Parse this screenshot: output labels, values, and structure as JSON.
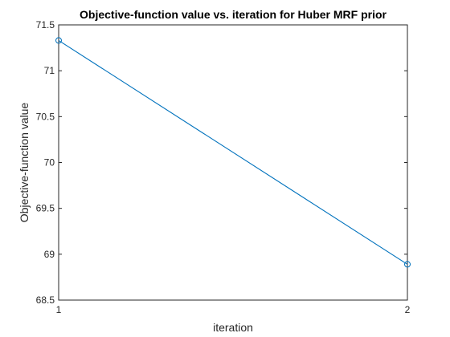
{
  "chart_data": {
    "type": "line",
    "title": "Objective-function value vs. iteration for Huber MRF prior",
    "xlabel": "iteration",
    "ylabel": "Objective-function value",
    "xlim": [
      1,
      2
    ],
    "ylim": [
      68.5,
      71.5
    ],
    "xticks": [
      1,
      2
    ],
    "xtick_labels": [
      "1",
      "2"
    ],
    "yticks": [
      68.5,
      69,
      69.5,
      70,
      70.5,
      71,
      71.5
    ],
    "ytick_labels": [
      "68.5",
      "69",
      "69.5",
      "70",
      "70.5",
      "71",
      "71.5"
    ],
    "grid": false,
    "series": [
      {
        "x": [
          1,
          2
        ],
        "y": [
          71.33,
          68.89
        ],
        "marker": "circle",
        "color": "#0072BD"
      }
    ]
  }
}
